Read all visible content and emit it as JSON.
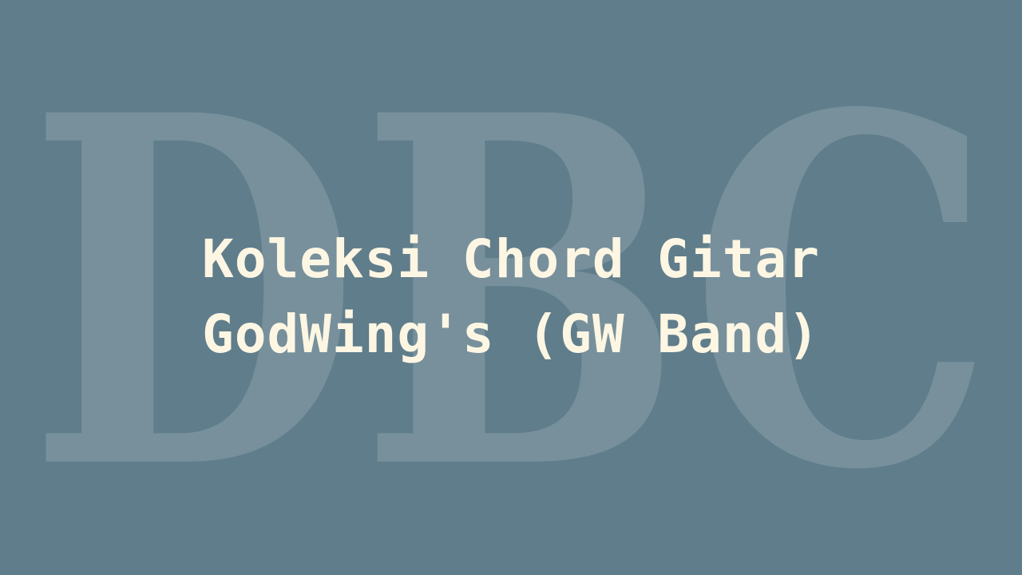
{
  "colors": {
    "background": "#607d8b",
    "watermark": "#77909c",
    "title": "#fdf6e3"
  },
  "watermark": {
    "text": "DBC"
  },
  "title": {
    "line1": "Koleksi Chord Gitar",
    "line2": "GodWing's (GW Band)"
  }
}
